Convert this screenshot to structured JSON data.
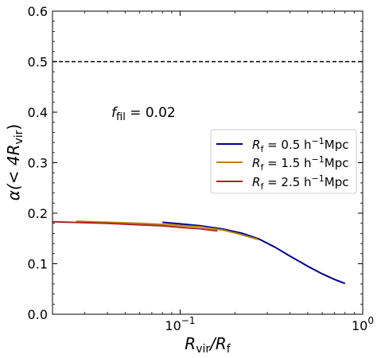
{
  "chart_data": {
    "type": "line",
    "xlabel_main": "R",
    "xlabel_sub1": "vir",
    "xlabel_slash": "/R",
    "xlabel_sub2": "f",
    "ylabel_main": "α(< 4R",
    "ylabel_sub": "vir",
    "ylabel_end": ")",
    "xscale": "log",
    "xlim": [
      0.02,
      1.0
    ],
    "ylim": [
      0.0,
      0.6
    ],
    "x_tick_labels": [
      {
        "value": 0.1,
        "base": "10",
        "exp": "−1"
      },
      {
        "value": 1.0,
        "base": "10",
        "exp": "0"
      }
    ],
    "y_ticks": [
      0.0,
      0.1,
      0.2,
      0.3,
      0.4,
      0.5,
      0.6
    ],
    "y_tick_labels": [
      "0.0",
      "0.1",
      "0.2",
      "0.3",
      "0.4",
      "0.5",
      "0.6"
    ],
    "annotation": {
      "main": "f",
      "sub": "fil",
      "rest": " = 0.02",
      "x": 0.042,
      "y": 0.4
    },
    "reference_line": {
      "y": 0.5,
      "style": "dashed",
      "color": "#000000"
    },
    "legend_position": "center-right",
    "series": [
      {
        "name": "R_f = 0.5 h^-1 Mpc",
        "legend": {
          "main": "R",
          "sub": "f",
          "mid": " = 0.5 h",
          "sup": "−1",
          "end": "Mpc"
        },
        "color": "#00008b",
        "x": [
          0.08,
          0.1,
          0.13,
          0.17,
          0.22,
          0.27,
          0.33,
          0.4,
          0.5,
          0.6,
          0.7,
          0.8
        ],
        "y": [
          0.182,
          0.179,
          0.175,
          0.169,
          0.16,
          0.149,
          0.133,
          0.115,
          0.095,
          0.08,
          0.069,
          0.061
        ]
      },
      {
        "name": "R_f = 1.5 h^-1 Mpc",
        "legend": {
          "main": "R",
          "sub": "f",
          "mid": " = 1.5 h",
          "sup": "−1",
          "end": "Mpc"
        },
        "color": "#b8860b",
        "x": [
          0.027,
          0.04,
          0.06,
          0.09,
          0.13,
          0.17,
          0.21,
          0.267
        ],
        "y": [
          0.184,
          0.182,
          0.18,
          0.177,
          0.173,
          0.167,
          0.159,
          0.148
        ]
      },
      {
        "name": "R_f = 2.5 h^-1 Mpc",
        "legend": {
          "main": "R",
          "sub": "f",
          "mid": " = 2.5 h",
          "sup": "−1",
          "end": "Mpc"
        },
        "color": "#b22222",
        "x": [
          0.016,
          0.025,
          0.04,
          0.06,
          0.08,
          0.1,
          0.13,
          0.16
        ],
        "y": [
          0.184,
          0.182,
          0.18,
          0.177,
          0.175,
          0.172,
          0.169,
          0.165
        ]
      }
    ]
  }
}
